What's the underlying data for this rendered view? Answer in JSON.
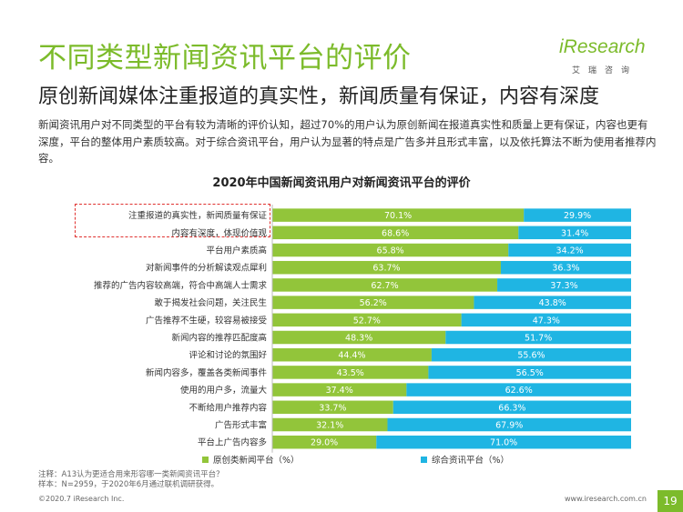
{
  "header": {
    "title": "不同类型新闻资讯平台的评价",
    "subtitle": "原创新闻媒体注重报道的真实性，新闻质量有保证，内容有深度",
    "logo_text": "iResearch",
    "logo_sub": "艾瑞咨询"
  },
  "description": "新闻资讯用户对不同类型的平台有较为清晰的评价认知，超过70%的用户认为原创新闻在报道真实性和质量上更有保证，内容也更有深度，平台的整体用户素质较高。对于综合资讯平台，用户认为显著的特点是广告多并且形式丰富，以及依托算法不断为使用者推荐内容。",
  "colors": {
    "accent": "#7cbb2b",
    "series1": "#92c53a",
    "series2": "#1fb5e3",
    "highlight": "#e0312f"
  },
  "chart_data": {
    "type": "bar",
    "orientation": "horizontal-stacked-100",
    "title": "2020年中国新闻资讯用户对新闻资讯平台的评价",
    "categories": [
      "注重报道的真实性，新闻质量有保证",
      "内容有深度，体现价值观",
      "平台用户素质高",
      "对新闻事件的分析解读观点犀利",
      "推荐的广告内容较高端，符合中高端人士需求",
      "敢于揭发社会问题，关注民生",
      "广告推荐不生硬，较容易被接受",
      "新闻内容的推荐匹配度高",
      "评论和讨论的氛围好",
      "新闻内容多，覆盖各类新闻事件",
      "使用的用户多，流量大",
      "不断给用户推荐内容",
      "广告形式丰富",
      "平台上广告内容多"
    ],
    "series": [
      {
        "name": "原创类新闻平台（%）",
        "values": [
          70.1,
          68.6,
          65.8,
          63.7,
          62.7,
          56.2,
          52.7,
          48.3,
          44.4,
          43.5,
          37.4,
          33.7,
          32.1,
          29.0
        ]
      },
      {
        "name": "综合资讯平台（%）",
        "values": [
          29.9,
          31.4,
          34.2,
          36.3,
          37.3,
          43.8,
          47.3,
          51.7,
          55.6,
          56.5,
          62.6,
          66.3,
          67.9,
          71.0
        ]
      }
    ],
    "xlim": [
      0,
      100
    ],
    "legend_position": "bottom"
  },
  "footer": {
    "note_line1": "注释：A13认为更适合用来形容哪一类新闻资讯平台？",
    "note_line2": "样本：N=2959，于2020年6月通过联机调研获得。",
    "copyright": "©2020.7 iResearch Inc.",
    "website": "www.iresearch.com.cn",
    "page_number": "19"
  }
}
